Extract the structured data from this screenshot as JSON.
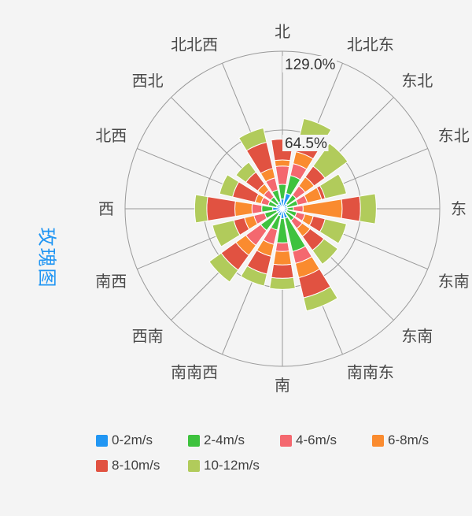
{
  "page": {
    "background": "#f4f4f4"
  },
  "title": {
    "text": "玫瑰图",
    "color": "#2196F3"
  },
  "chart_data": {
    "type": "bar",
    "subtype": "polar-stacked-wind-rose",
    "unit": "%",
    "directions": [
      "北",
      "北北东",
      "东北",
      "东北",
      "东",
      "东南",
      "东南",
      "南南东",
      "南",
      "南南西",
      "西南",
      "南西",
      "西",
      "北西",
      "西北",
      "北北西"
    ],
    "radius_axis": {
      "ticks": [
        64.5,
        129.0
      ],
      "tick_labels": [
        "64.5%",
        "129.0%"
      ],
      "max": 129.0
    },
    "series": [
      {
        "name": "0-2m/s",
        "color": "#2196F3",
        "values": [
          8,
          13,
          5,
          4,
          4,
          4,
          4,
          8,
          8,
          6,
          5,
          5,
          8,
          5,
          5,
          6
        ]
      },
      {
        "name": "2-4m/s",
        "color": "#3EC23E",
        "values": [
          12,
          15,
          9,
          9,
          5,
          8,
          8,
          28,
          20,
          12,
          17,
          10,
          9,
          7,
          7,
          10
        ]
      },
      {
        "name": "4-6m/s",
        "color": "#F4686F",
        "values": [
          15,
          10,
          9,
          8,
          8,
          7,
          8,
          10,
          7,
          12,
          15,
          9,
          8,
          6,
          7,
          10
        ]
      },
      {
        "name": "6-8m/s",
        "color": "#FA8B2F",
        "values": [
          5,
          10,
          9,
          12,
          32,
          7,
          8,
          12,
          11,
          10,
          10,
          8,
          14,
          5,
          6,
          8
        ]
      },
      {
        "name": "8-10m/s",
        "color": "#E15241",
        "values": [
          17,
          14,
          11,
          3,
          15,
          10,
          14,
          17,
          11,
          15,
          15,
          9,
          23,
          19,
          12,
          22
        ]
      },
      {
        "name": "10-12m/s",
        "color": "#B1CB5B",
        "values": [
          0,
          14,
          23,
          18,
          13,
          18,
          14,
          11,
          9,
          10,
          12,
          18,
          10,
          11,
          10,
          12
        ]
      }
    ],
    "legend_position": "bottom",
    "grid": {
      "rings": 2,
      "spokes": 16,
      "line_color": "#999999"
    },
    "text_colors": {
      "direction_label": "#4a4a4a",
      "tick_label": "#333333"
    }
  }
}
